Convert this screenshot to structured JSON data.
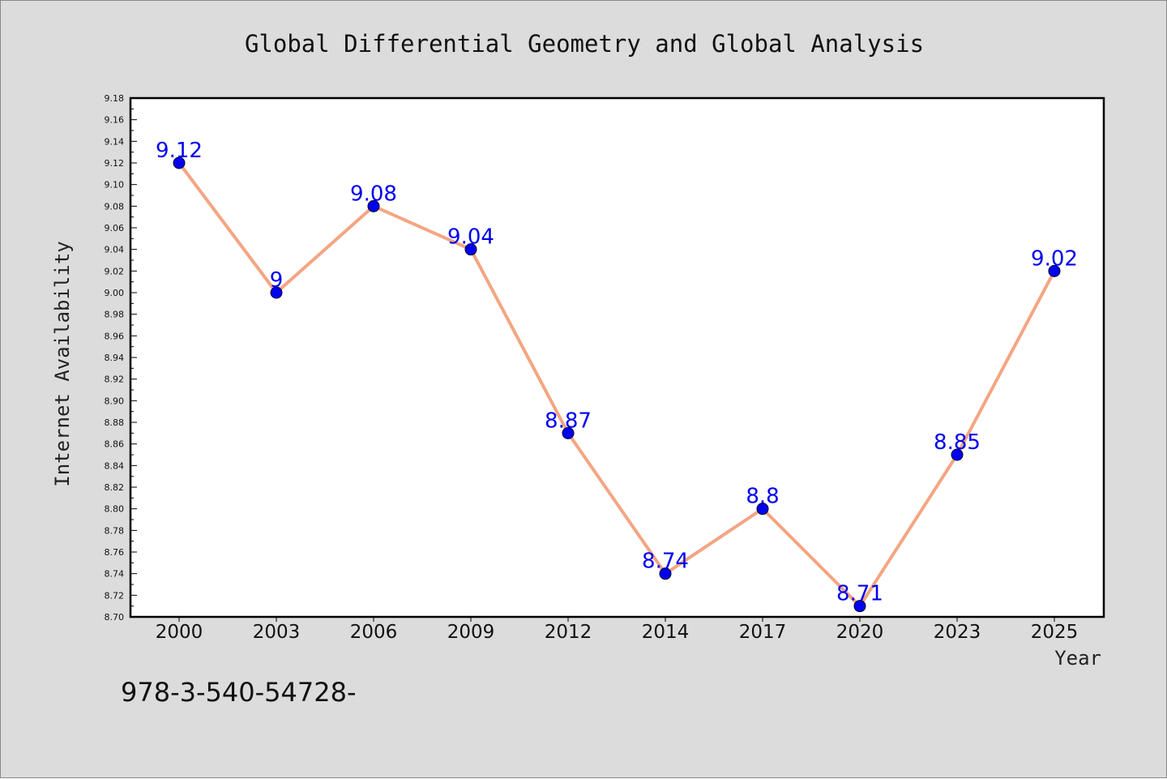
{
  "chart_data": {
    "type": "line",
    "title": "Global Differential Geometry and Global Analysis",
    "xlabel": "Year",
    "ylabel": "Internet Availability",
    "categories": [
      "2000",
      "2003",
      "2006",
      "2009",
      "2012",
      "2014",
      "2017",
      "2020",
      "2023",
      "2025"
    ],
    "series": [
      {
        "values": [
          9.12,
          9.0,
          9.08,
          9.04,
          8.87,
          8.74,
          8.8,
          8.71,
          8.85,
          9.02
        ],
        "labels": [
          "9.12",
          "9",
          "9.08",
          "9.04",
          "8.87",
          "8.74",
          "8.8",
          "8.71",
          "8.85",
          "9.02"
        ]
      }
    ],
    "ylim": [
      8.7,
      9.18
    ],
    "yticks": [
      "8.70",
      "8.72",
      "8.74",
      "8.76",
      "8.78",
      "8.80",
      "8.82",
      "8.84",
      "8.86",
      "8.88",
      "8.90",
      "8.92",
      "8.94",
      "8.96",
      "8.98",
      "9.00",
      "9.02",
      "9.04",
      "9.06",
      "9.08",
      "9.10",
      "9.12",
      "9.14",
      "9.16",
      "9.18"
    ],
    "grid": false,
    "legend": "none",
    "colors": {
      "line": "#f4a582",
      "marker": "#0000ee",
      "label": "#0000ee",
      "background": "#dcdcdc",
      "plot_background": "#ffffff"
    }
  },
  "footer": {
    "text": "978-3-540-54728-"
  }
}
